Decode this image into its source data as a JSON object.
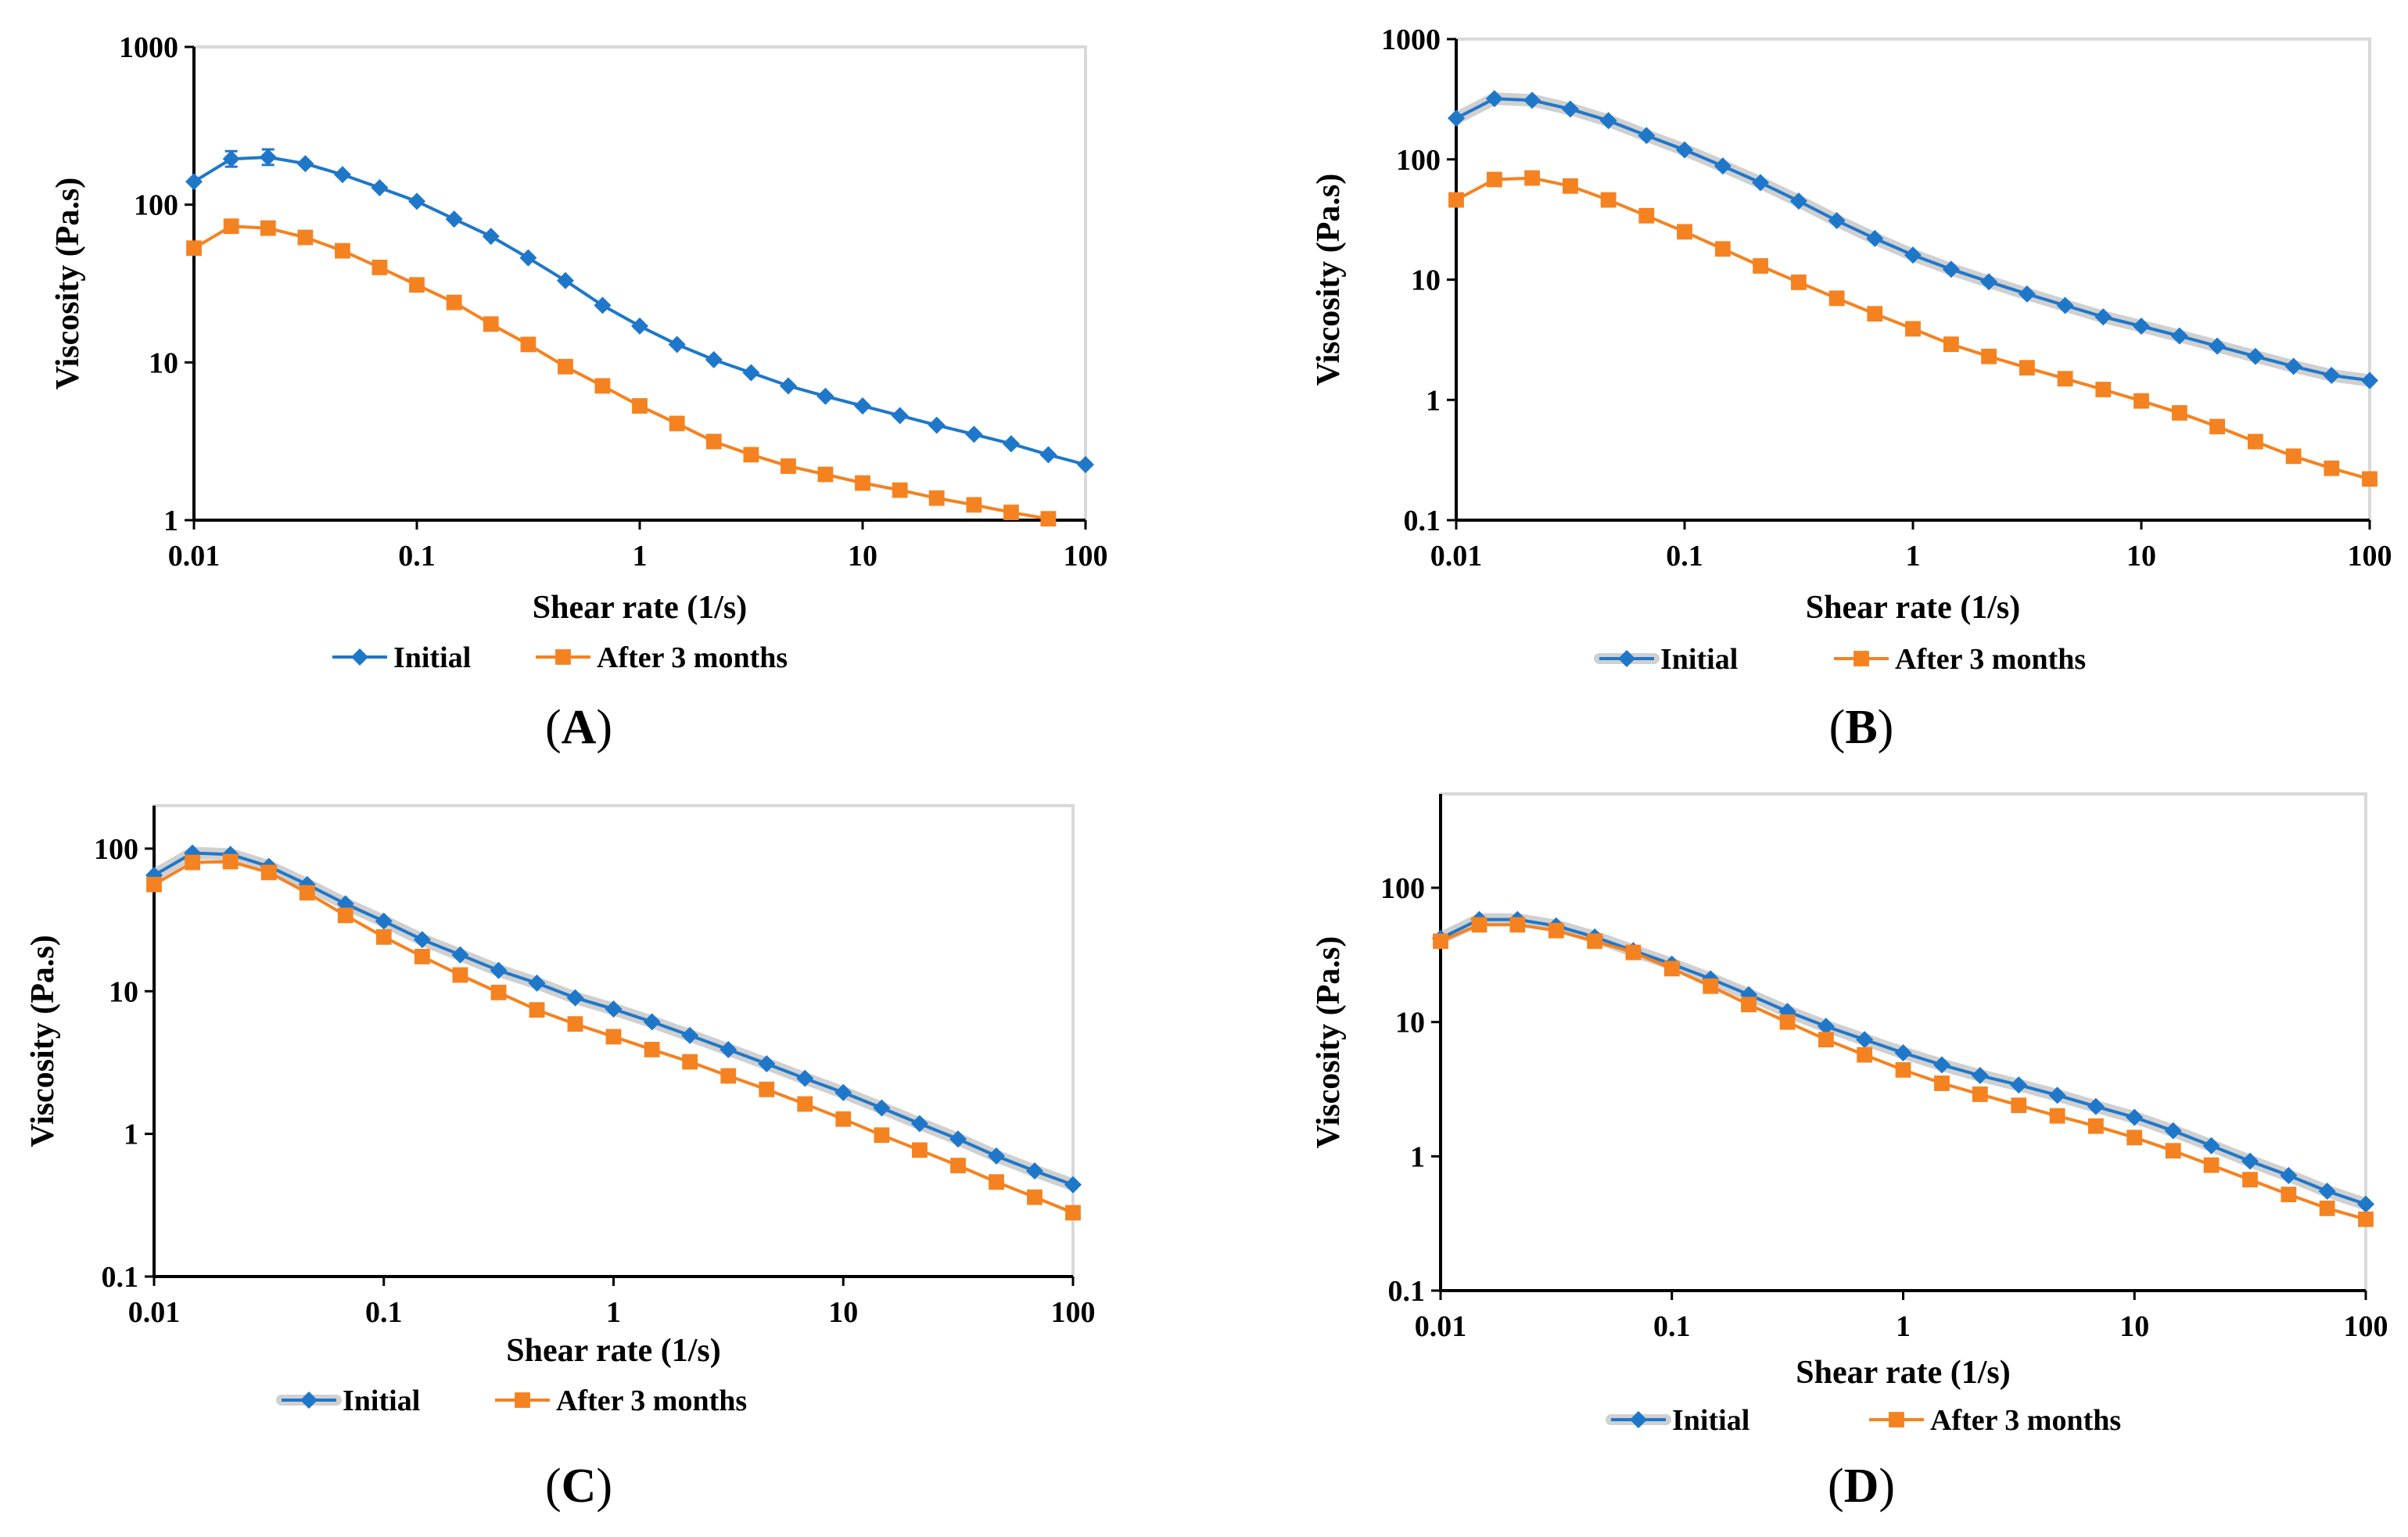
{
  "figure": {
    "colors": {
      "initial": "#1f77c9",
      "after": "#f58220",
      "halo": "#d0d0d0"
    },
    "shear_rate_points": [
      0.01,
      0.0147,
      0.0215,
      0.0316,
      0.0464,
      0.0681,
      0.1,
      0.147,
      0.215,
      0.316,
      0.464,
      0.681,
      1,
      1.47,
      2.15,
      3.16,
      4.64,
      6.81,
      10,
      14.7,
      21.5,
      31.6,
      46.4,
      68.1,
      100
    ]
  },
  "chart_data": [
    {
      "panel": "A",
      "label_open": "(",
      "label_letter": "A",
      "label_close": ")",
      "type": "line",
      "title": "",
      "xlabel": "Shear rate (1/s)",
      "ylabel": "Viscosity (Pa.s)",
      "xscale": "log",
      "yscale": "log",
      "xlim": [
        0.01,
        100
      ],
      "ylim": [
        1,
        1000
      ],
      "xticks": [
        "0.01",
        "0.1",
        "1",
        "10",
        "100"
      ],
      "yticks": [
        "1",
        "10",
        "100",
        "1000"
      ],
      "legend_position": "bottom",
      "halo": false,
      "series": [
        {
          "name": "Initial",
          "marker": "diamond",
          "color": "#1f77c9",
          "values": [
            140,
            195,
            200,
            182,
            155,
            128,
            105,
            81,
            63,
            46,
            33,
            23,
            17,
            13,
            10.4,
            8.6,
            7.1,
            6.1,
            5.3,
            4.6,
            4.0,
            3.5,
            3.05,
            2.6,
            2.25
          ]
        },
        {
          "name": "After 3 months",
          "marker": "square",
          "color": "#f58220",
          "values": [
            53,
            73,
            71,
            62,
            51,
            40,
            31,
            24,
            17.5,
            13,
            9.4,
            7.1,
            5.3,
            4.1,
            3.15,
            2.6,
            2.2,
            1.95,
            1.72,
            1.55,
            1.38,
            1.25,
            1.12,
            1.02,
            null
          ]
        }
      ]
    },
    {
      "panel": "B",
      "label_open": "(",
      "label_letter": "B",
      "label_close": ")",
      "type": "line",
      "title": "",
      "xlabel": "Shear rate (1/s)",
      "ylabel": "Viscosity (Pa.s)",
      "xscale": "log",
      "yscale": "log",
      "xlim": [
        0.01,
        100
      ],
      "ylim": [
        0.1,
        1000
      ],
      "xticks": [
        "0.01",
        "0.1",
        "1",
        "10",
        "100"
      ],
      "yticks": [
        "0.1",
        "1",
        "10",
        "100",
        "1000"
      ],
      "legend_position": "bottom",
      "halo": true,
      "series": [
        {
          "name": "Initial",
          "marker": "diamond",
          "color": "#1f77c9",
          "values": [
            220,
            320,
            310,
            262,
            210,
            158,
            120,
            88,
            64,
            45,
            31,
            22,
            16,
            12.2,
            9.6,
            7.6,
            6.1,
            4.9,
            4.1,
            3.4,
            2.8,
            2.3,
            1.9,
            1.6,
            1.45
          ]
        },
        {
          "name": "After 3 months",
          "marker": "square",
          "color": "#f58220",
          "values": [
            46,
            68,
            70,
            60,
            46,
            34,
            25,
            18,
            13,
            9.5,
            7.0,
            5.2,
            3.9,
            2.9,
            2.3,
            1.85,
            1.5,
            1.22,
            0.98,
            0.78,
            0.6,
            0.45,
            0.34,
            0.27,
            0.22
          ]
        }
      ]
    },
    {
      "panel": "C",
      "label_open": "(",
      "label_letter": "C",
      "label_close": ")",
      "type": "line",
      "title": "",
      "xlabel": "Shear rate (1/s)",
      "ylabel": "Viscosity (Pa.s)",
      "xscale": "log",
      "yscale": "log",
      "xlim": [
        0.01,
        100
      ],
      "ylim": [
        0.1,
        200
      ],
      "xticks": [
        "0.01",
        "0.1",
        "1",
        "10",
        "100"
      ],
      "yticks": [
        "0.1",
        "1",
        "10",
        "100"
      ],
      "legend_position": "bottom",
      "halo": true,
      "series": [
        {
          "name": "Initial",
          "marker": "diamond",
          "color": "#1f77c9",
          "values": [
            65,
            93,
            91,
            75,
            56,
            41,
            31,
            23,
            18,
            14,
            11.4,
            9.0,
            7.5,
            6.1,
            4.9,
            3.9,
            3.1,
            2.45,
            1.95,
            1.52,
            1.18,
            0.92,
            0.7,
            0.55,
            0.44
          ]
        },
        {
          "name": "After 3 months",
          "marker": "square",
          "color": "#f58220",
          "values": [
            56,
            80,
            81,
            68,
            49,
            34,
            24,
            17.5,
            13,
            9.8,
            7.4,
            5.9,
            4.8,
            3.9,
            3.2,
            2.55,
            2.05,
            1.62,
            1.27,
            0.98,
            0.77,
            0.6,
            0.46,
            0.36,
            0.28
          ]
        }
      ]
    },
    {
      "panel": "D",
      "label_open": "(",
      "label_letter": "D",
      "label_close": ")",
      "type": "line",
      "title": "",
      "xlabel": "Shear rate (1/s)",
      "ylabel": "Viscosity (Pa.s)",
      "xscale": "log",
      "yscale": "log",
      "xlim": [
        0.01,
        100
      ],
      "ylim": [
        0.1,
        500
      ],
      "xticks": [
        "0.01",
        "0.1",
        "1",
        "10",
        "100"
      ],
      "yticks": [
        "0.1",
        "1",
        "10",
        "100"
      ],
      "legend_position": "bottom",
      "halo": true,
      "series": [
        {
          "name": "Initial",
          "marker": "diamond",
          "color": "#1f77c9",
          "values": [
            42,
            58,
            58,
            52,
            43,
            34,
            27,
            21,
            16,
            12,
            9.3,
            7.4,
            5.9,
            4.8,
            4.0,
            3.4,
            2.85,
            2.35,
            1.95,
            1.55,
            1.2,
            0.92,
            0.72,
            0.55,
            0.44
          ]
        },
        {
          "name": "After 3 months",
          "marker": "square",
          "color": "#f58220",
          "values": [
            40,
            53,
            53,
            48,
            40,
            33,
            25,
            18.5,
            13.5,
            10,
            7.4,
            5.7,
            4.4,
            3.5,
            2.9,
            2.4,
            2.0,
            1.68,
            1.38,
            1.1,
            0.86,
            0.67,
            0.52,
            0.41,
            0.34
          ]
        }
      ]
    }
  ]
}
